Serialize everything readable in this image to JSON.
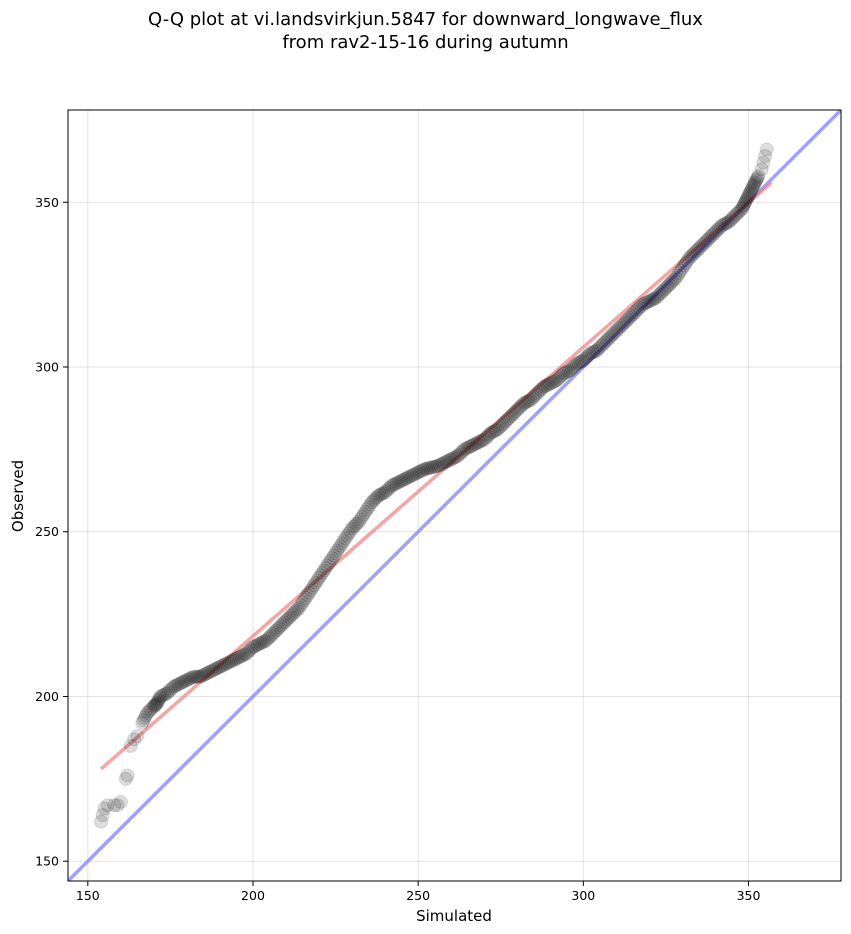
{
  "title": {
    "line1": "Q-Q plot at vi.landsvirkjun.5847 for downward_longwave_flux",
    "line2": "from rav2-15-16 during autumn"
  },
  "chart_data": {
    "type": "scatter",
    "title": "Q-Q plot at vi.landsvirkjun.5847 for downward_longwave_flux\nfrom rav2-15-16 during autumn",
    "xlabel": "Simulated",
    "ylabel": "Observed",
    "xlim": [
      144,
      378
    ],
    "ylim": [
      144,
      378
    ],
    "x_ticks": [
      150,
      200,
      250,
      300,
      350
    ],
    "y_ticks": [
      150,
      200,
      250,
      300,
      350
    ],
    "grid": true,
    "series": [
      {
        "kind": "quantile_points",
        "color": "#000000",
        "x": [
          154,
          154.5,
          155,
          156,
          158,
          159,
          160,
          161.5,
          162,
          163,
          164,
          165,
          166.5,
          168,
          170,
          171,
          172,
          174,
          176,
          178,
          180,
          182,
          184,
          186,
          188,
          190,
          192,
          194,
          196,
          198,
          200,
          202,
          204,
          206,
          208,
          210,
          212,
          214,
          216,
          218,
          220,
          222,
          224,
          226,
          228,
          230,
          232,
          234,
          236,
          238,
          240,
          242,
          244,
          246,
          248,
          250,
          252,
          254,
          256,
          258,
          260,
          262,
          264,
          266,
          268,
          270,
          272,
          274,
          276,
          278,
          280,
          282,
          284,
          286,
          288,
          290,
          292,
          294,
          296,
          298,
          300,
          302,
          304,
          306,
          308,
          310,
          312,
          314,
          316,
          318,
          320,
          322,
          324,
          326,
          328,
          330,
          332,
          334,
          336,
          338,
          340,
          342,
          344,
          346,
          348,
          349,
          350,
          351,
          352,
          353,
          354,
          354.5,
          355,
          355.5
        ],
        "y": [
          162,
          164,
          166,
          167,
          167,
          167,
          168,
          175,
          176,
          185,
          187,
          188,
          192,
          195,
          197,
          198,
          200,
          201,
          203,
          204,
          205,
          206,
          206,
          207,
          208,
          209,
          210,
          211,
          212,
          213,
          215,
          216,
          217,
          219,
          221,
          223,
          225,
          227,
          230,
          233,
          236,
          239,
          242,
          245,
          248,
          251,
          253,
          256,
          259,
          261,
          262,
          264,
          265,
          266,
          267,
          268,
          269,
          269.5,
          270,
          271,
          272,
          273,
          275,
          276,
          277,
          278,
          280,
          281,
          283,
          285,
          287,
          289,
          290,
          292,
          294,
          295,
          296,
          298,
          299,
          301,
          302,
          304,
          305,
          307,
          309,
          311,
          313,
          315,
          317,
          319,
          320,
          321,
          323,
          325,
          327,
          330,
          333,
          335,
          337,
          339,
          341,
          343,
          344,
          346,
          348,
          350,
          352,
          354,
          356,
          358,
          360,
          362,
          364,
          366
        ]
      },
      {
        "kind": "fit_line",
        "color": "#f08080",
        "x": [
          154,
          357
        ],
        "y": [
          178,
          356
        ]
      },
      {
        "kind": "identity_line",
        "color": "#8080ff",
        "x": [
          144,
          378
        ],
        "y": [
          144,
          378
        ]
      }
    ]
  }
}
